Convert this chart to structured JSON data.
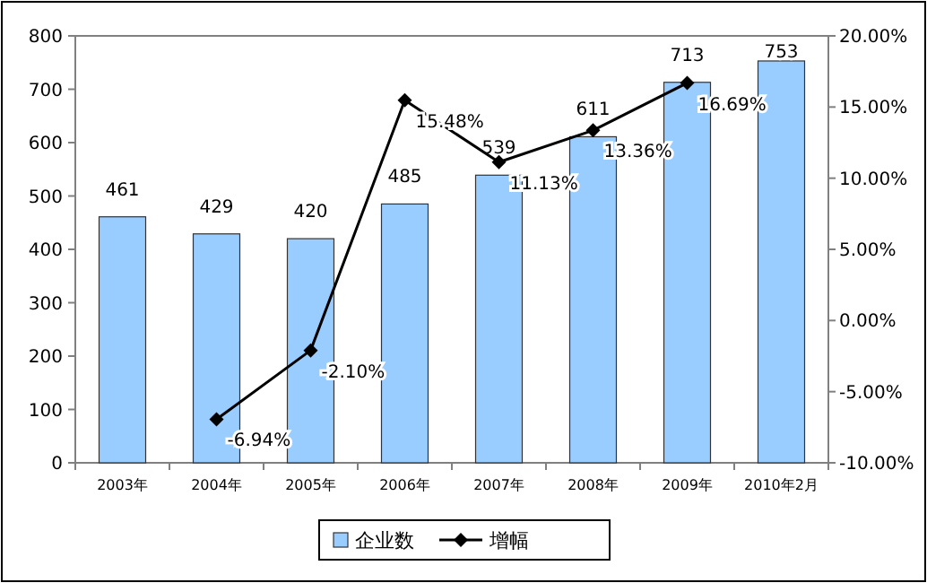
{
  "chart_data": {
    "type": "bar",
    "categories": [
      "2003年",
      "2004年",
      "2005年",
      "2006年",
      "2007年",
      "2008年",
      "2009年",
      "2010年2月"
    ],
    "series": [
      {
        "name": "企业数",
        "color": "#99ccff",
        "values": [
          461,
          429,
          420,
          485,
          539,
          611,
          713,
          753
        ],
        "value_labels": [
          "461",
          "429",
          "420",
          "485",
          "539",
          "611",
          "713",
          "753"
        ]
      },
      {
        "name": "增幅",
        "type": "line",
        "axis": "y2",
        "color": "#000000",
        "marker": "diamond",
        "values": [
          null,
          -6.94,
          -2.1,
          15.48,
          11.13,
          13.36,
          16.69,
          null
        ],
        "value_labels": [
          null,
          "-6.94%",
          "-2.10%",
          "15.48%",
          "11.13%",
          "13.36%",
          "16.69%",
          null
        ]
      }
    ],
    "ylim": [
      0,
      800
    ],
    "yticks": [
      0,
      100,
      200,
      300,
      400,
      500,
      600,
      700,
      800
    ],
    "y2lim": [
      -10,
      20
    ],
    "y2ticks": [
      {
        "value": -10,
        "label": "-10.00%"
      },
      {
        "value": -5,
        "label": "-5.00%"
      },
      {
        "value": 0,
        "label": "0.00%"
      },
      {
        "value": 5,
        "label": "5.00%"
      },
      {
        "value": 10,
        "label": "10.00%"
      },
      {
        "value": 15,
        "label": "15.00%"
      },
      {
        "value": 20,
        "label": "20.00%"
      }
    ],
    "legend": "bottom",
    "grid": false
  }
}
